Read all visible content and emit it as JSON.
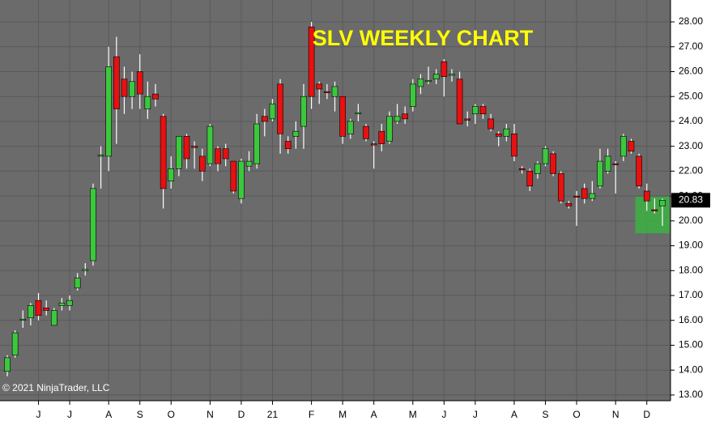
{
  "chart_data": {
    "type": "candlestick",
    "title": "SLV WEEKLY CHART",
    "credit": "© 2021 NinjaTrader, LLC",
    "categories": [
      null,
      null,
      null,
      null,
      "J",
      null,
      null,
      null,
      "J",
      null,
      null,
      null,
      null,
      "A",
      null,
      null,
      null,
      "S",
      null,
      null,
      null,
      "O",
      null,
      null,
      null,
      null,
      "N",
      null,
      null,
      null,
      "D",
      null,
      null,
      null,
      "21",
      null,
      null,
      null,
      null,
      "F",
      null,
      null,
      null,
      "M",
      null,
      null,
      null,
      "A",
      null,
      null,
      null,
      null,
      "M",
      null,
      null,
      null,
      "J",
      null,
      null,
      null,
      "J",
      null,
      null,
      null,
      null,
      "A",
      null,
      null,
      null,
      "S",
      null,
      null,
      null,
      "O",
      null,
      null,
      null,
      null,
      "N",
      null,
      null,
      null,
      "D",
      null,
      null
    ],
    "open": [
      13.95,
      14.6,
      16.0,
      16.1,
      16.8,
      16.5,
      15.8,
      16.6,
      16.6,
      17.3,
      18.0,
      18.4,
      22.6,
      22.6,
      26.6,
      25.7,
      25.0,
      26.0,
      24.5,
      25.1,
      24.2,
      21.6,
      22.1,
      23.4,
      23.0,
      22.6,
      22.3,
      22.9,
      22.9,
      22.4,
      20.9,
      22.2,
      22.3,
      24.2,
      24.1,
      25.5,
      23.2,
      23.4,
      23.8,
      27.8,
      25.5,
      25.2,
      25.0,
      25.0,
      23.5,
      24.3,
      23.8,
      23.1,
      23.6,
      23.2,
      24.0,
      24.3,
      24.6,
      25.4,
      25.6,
      25.7,
      26.4,
      25.85,
      25.7,
      24.1,
      24.3,
      24.6,
      24.1,
      23.5,
      23.4,
      23.5,
      22.1,
      22.0,
      21.9,
      22.3,
      22.7,
      21.9,
      20.7,
      21.0,
      21.3,
      20.9,
      21.4,
      22.0,
      22.3,
      22.6,
      23.2,
      22.6,
      21.2,
      20.45,
      20.6
    ],
    "high": [
      14.6,
      15.6,
      16.4,
      16.7,
      17.1,
      16.8,
      16.5,
      16.9,
      17.0,
      17.9,
      18.3,
      21.5,
      23.0,
      27.0,
      27.4,
      26.2,
      26.0,
      26.7,
      25.6,
      25.5,
      24.3,
      22.6,
      23.4,
      23.5,
      23.2,
      22.9,
      23.9,
      23.0,
      23.1,
      22.4,
      22.5,
      22.8,
      24.3,
      24.5,
      24.9,
      25.7,
      23.4,
      24.0,
      25.5,
      28.0,
      25.6,
      25.5,
      25.6,
      25.0,
      24.1,
      24.7,
      23.9,
      23.2,
      23.9,
      24.4,
      24.7,
      24.6,
      25.7,
      25.9,
      26.2,
      26.1,
      26.5,
      26.1,
      26.0,
      24.4,
      24.7,
      24.7,
      24.3,
      23.6,
      23.9,
      23.9,
      22.2,
      22.1,
      22.4,
      23.0,
      22.8,
      22.0,
      20.8,
      21.2,
      21.5,
      21.6,
      22.9,
      22.9,
      22.4,
      23.5,
      23.3,
      22.7,
      21.5,
      20.9,
      20.9
    ],
    "low": [
      13.75,
      14.5,
      15.7,
      15.8,
      16.0,
      16.2,
      15.8,
      16.4,
      16.4,
      17.2,
      17.8,
      18.2,
      21.3,
      22.0,
      23.1,
      24.3,
      24.5,
      24.5,
      24.1,
      24.6,
      20.5,
      21.3,
      21.8,
      22.1,
      22.1,
      21.6,
      22.2,
      22.0,
      22.2,
      21.1,
      20.7,
      22.0,
      22.1,
      23.4,
      24.0,
      22.7,
      22.7,
      22.9,
      22.9,
      24.5,
      24.7,
      24.9,
      24.4,
      23.1,
      23.3,
      24.0,
      23.2,
      22.1,
      22.8,
      23.1,
      23.9,
      23.9,
      24.4,
      25.1,
      25.5,
      25.5,
      25.0,
      25.6,
      23.9,
      23.8,
      23.9,
      24.1,
      23.6,
      23.0,
      23.2,
      22.4,
      21.9,
      21.2,
      21.7,
      22.2,
      21.8,
      20.7,
      20.5,
      19.8,
      20.7,
      20.8,
      21.3,
      21.9,
      21.1,
      22.4,
      22.7,
      21.3,
      20.4,
      20.3,
      19.8
    ],
    "close": [
      14.5,
      15.5,
      16.05,
      16.6,
      16.2,
      16.4,
      16.4,
      16.7,
      16.8,
      17.7,
      18.05,
      21.3,
      22.65,
      26.2,
      24.5,
      25.0,
      25.6,
      25.1,
      25.0,
      24.9,
      21.3,
      22.1,
      23.4,
      22.5,
      22.95,
      22.0,
      23.8,
      22.3,
      22.5,
      21.2,
      22.4,
      22.4,
      23.9,
      24.0,
      24.7,
      23.5,
      22.9,
      23.6,
      25.0,
      25.0,
      25.3,
      25.15,
      25.4,
      23.4,
      24.0,
      24.35,
      23.3,
      23.05,
      23.1,
      24.2,
      24.2,
      24.1,
      25.5,
      25.7,
      25.65,
      25.9,
      25.8,
      25.9,
      23.9,
      24.05,
      24.6,
      24.3,
      23.7,
      23.4,
      23.7,
      22.6,
      22.05,
      21.4,
      22.3,
      22.9,
      21.9,
      20.8,
      20.6,
      20.95,
      20.9,
      21.1,
      22.4,
      22.6,
      22.25,
      23.4,
      22.8,
      21.4,
      20.8,
      20.4,
      20.83
    ],
    "up_color": "#3cc83c",
    "down_color": "#e81010",
    "ylim": [
      12.77,
      28.88
    ],
    "yticks": [
      {
        "value": 13,
        "label": "13.00"
      },
      {
        "value": 14,
        "label": "14.00"
      },
      {
        "value": 15,
        "label": "15.00"
      },
      {
        "value": 16,
        "label": "16.00"
      },
      {
        "value": 17,
        "label": "17.00"
      },
      {
        "value": 18,
        "label": "18.00"
      },
      {
        "value": 19,
        "label": "19.00"
      },
      {
        "value": 20,
        "label": "20.00"
      },
      {
        "value": 21,
        "label": "21.00"
      },
      {
        "value": 22,
        "label": "22.00"
      },
      {
        "value": 23,
        "label": "23.00"
      },
      {
        "value": 24,
        "label": "24.00"
      },
      {
        "value": 25,
        "label": "25.00"
      },
      {
        "value": 26,
        "label": "26.00"
      },
      {
        "value": 27,
        "label": "27.00"
      },
      {
        "value": 28,
        "label": "28.00"
      }
    ],
    "grid": true,
    "highlight_zone": {
      "ylim": [
        19.5,
        20.97
      ],
      "color": "#3cb043"
    }
  }
}
